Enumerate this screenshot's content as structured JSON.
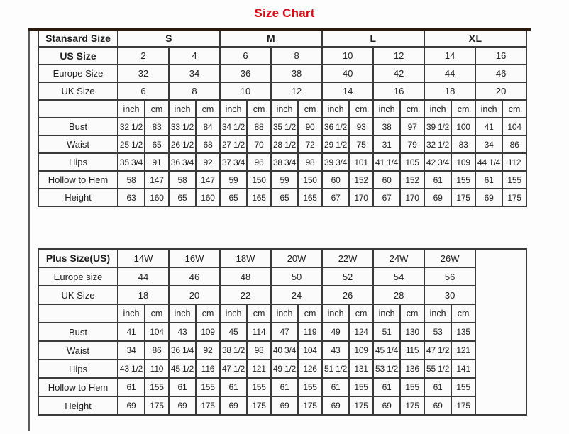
{
  "title": "Size Chart",
  "units": {
    "inch": "inch",
    "cm": "cm"
  },
  "colors": {
    "title_red": "#e30613",
    "border_gray": "#3a3a3a",
    "top_accent_brown": "#2a1a0e",
    "cell_bg": "#fbfbfb"
  },
  "standard_table": {
    "corner_label": "Stansard Size",
    "size_groups": [
      "S",
      "M",
      "L",
      "XL"
    ],
    "size_rows": [
      {
        "label": "US Size",
        "bold": true,
        "values": [
          "2",
          "4",
          "6",
          "8",
          "10",
          "12",
          "14",
          "16"
        ]
      },
      {
        "label": "Europe Size",
        "bold": false,
        "values": [
          "32",
          "34",
          "36",
          "38",
          "40",
          "42",
          "44",
          "46"
        ]
      },
      {
        "label": "UK Size",
        "bold": false,
        "values": [
          "6",
          "8",
          "10",
          "12",
          "14",
          "16",
          "18",
          "20"
        ]
      }
    ],
    "measure_rows": [
      {
        "label": "Bust",
        "values": [
          "32 1/2",
          "83",
          "33 1/2",
          "84",
          "34 1/2",
          "88",
          "35 1/2",
          "90",
          "36 1/2",
          "93",
          "38",
          "97",
          "39 1/2",
          "100",
          "41",
          "104"
        ]
      },
      {
        "label": "Waist",
        "values": [
          "25 1/2",
          "65",
          "26 1/2",
          "68",
          "27 1/2",
          "70",
          "28 1/2",
          "72",
          "29 1/2",
          "75",
          "31",
          "79",
          "32 1/2",
          "83",
          "34",
          "86"
        ]
      },
      {
        "label": "Hips",
        "values": [
          "35 3/4",
          "91",
          "36 3/4",
          "92",
          "37 3/4",
          "96",
          "38 3/4",
          "98",
          "39 3/4",
          "101",
          "41 1/4",
          "105",
          "42 3/4",
          "109",
          "44 1/4",
          "112"
        ]
      },
      {
        "label": "Hollow to Hem",
        "values": [
          "58",
          "147",
          "58",
          "147",
          "59",
          "150",
          "59",
          "150",
          "60",
          "152",
          "60",
          "152",
          "61",
          "155",
          "61",
          "155"
        ]
      },
      {
        "label": "Height",
        "values": [
          "63",
          "160",
          "65",
          "160",
          "65",
          "165",
          "65",
          "165",
          "67",
          "170",
          "67",
          "170",
          "69",
          "175",
          "69",
          "175"
        ]
      }
    ]
  },
  "plus_table": {
    "corner_label": "Plus Size(US)",
    "size_groups": [
      "14W",
      "16W",
      "18W",
      "20W",
      "22W",
      "24W",
      "26W"
    ],
    "size_rows": [
      {
        "label": "Europe size",
        "bold": false,
        "values": [
          "44",
          "46",
          "48",
          "50",
          "52",
          "54",
          "56"
        ]
      },
      {
        "label": "UK Size",
        "bold": false,
        "values": [
          "18",
          "20",
          "22",
          "24",
          "26",
          "28",
          "30"
        ]
      }
    ],
    "measure_rows": [
      {
        "label": "Bust",
        "values": [
          "41",
          "104",
          "43",
          "109",
          "45",
          "114",
          "47",
          "119",
          "49",
          "124",
          "51",
          "130",
          "53",
          "135"
        ]
      },
      {
        "label": "Waist",
        "values": [
          "34",
          "86",
          "36 1/4",
          "92",
          "38 1/2",
          "98",
          "40 3/4",
          "104",
          "43",
          "109",
          "45 1/4",
          "115",
          "47 1/2",
          "121"
        ]
      },
      {
        "label": "Hips",
        "values": [
          "43 1/2",
          "110",
          "45 1/2",
          "116",
          "47 1/2",
          "121",
          "49 1/2",
          "126",
          "51 1/2",
          "131",
          "53 1/2",
          "136",
          "55 1/2",
          "141"
        ]
      },
      {
        "label": "Hollow to Hem",
        "values": [
          "61",
          "155",
          "61",
          "155",
          "61",
          "155",
          "61",
          "155",
          "61",
          "155",
          "61",
          "155",
          "61",
          "155"
        ]
      },
      {
        "label": "Height",
        "values": [
          "69",
          "175",
          "69",
          "175",
          "69",
          "175",
          "69",
          "175",
          "69",
          "175",
          "69",
          "175",
          "69",
          "175"
        ]
      }
    ]
  }
}
